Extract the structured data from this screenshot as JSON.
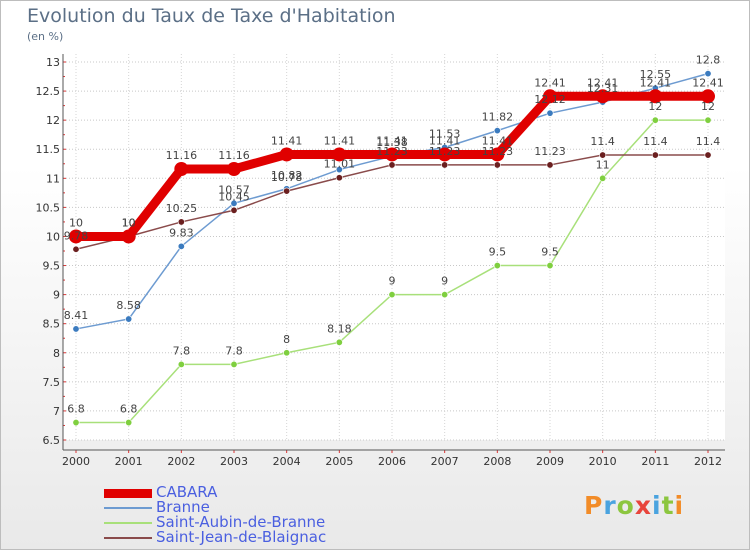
{
  "title": "Evolution du Taux de Taxe d'Habitation",
  "subtitle": "(en %)",
  "logo": {
    "text": "Proxiti",
    "letter_colors": [
      "#f28c28",
      "#4aa3df",
      "#8cc63f",
      "#e8453c",
      "#4aa3df",
      "#8cc63f",
      "#f28c28"
    ]
  },
  "chart_data": {
    "type": "line",
    "title": "Evolution du Taux de Taxe d'Habitation",
    "ylabel": "(en %)",
    "xlabel": "",
    "x": [
      "2000",
      "2001",
      "2002",
      "2003",
      "2004",
      "2005",
      "2006",
      "2007",
      "2008",
      "2009",
      "2010",
      "2011",
      "2012"
    ],
    "ylim": [
      6.5,
      13
    ],
    "yticks": [
      "6.5",
      "7",
      "7.5",
      "8",
      "8.5",
      "9",
      "9.5",
      "10",
      "10.5",
      "11",
      "11.5",
      "12",
      "12.5",
      "13"
    ],
    "grid": true,
    "legend_position": "bottom-left",
    "series": [
      {
        "name": "CABARA",
        "color": "#e00000",
        "emphasis": true,
        "values": [
          10,
          10,
          11.16,
          11.16,
          11.41,
          11.41,
          11.41,
          11.41,
          11.41,
          12.41,
          12.41,
          12.41,
          12.41
        ],
        "labels": [
          "10",
          "10",
          "11.16",
          "11.16",
          "11.41",
          "11.41",
          "11.41",
          "11.41",
          "11.41",
          "12.41",
          "12.41",
          "12.41",
          "12.41"
        ]
      },
      {
        "name": "Branne",
        "color": "#6d9bd1",
        "marker": "#3b7bbf",
        "values": [
          8.41,
          8.58,
          9.83,
          10.57,
          10.82,
          11.15,
          11.38,
          11.53,
          11.82,
          12.12,
          12.31,
          12.55,
          12.8
        ],
        "labels": [
          "8.41",
          "8.58",
          "9.83",
          "10.57",
          "10.82",
          "",
          "11.38",
          "11.53",
          "11.82",
          "12.12",
          "12.31",
          "12.55",
          "12.8"
        ]
      },
      {
        "name": "Saint-Aubin-de-Branne",
        "color": "#a8e07a",
        "marker": "#7fcf3f",
        "values": [
          6.8,
          6.8,
          7.8,
          7.8,
          8,
          8.18,
          9,
          9,
          9.5,
          9.5,
          11,
          12,
          12
        ],
        "labels": [
          "6.8",
          "6.8",
          "7.8",
          "7.8",
          "8",
          "8.18",
          "9",
          "9",
          "9.5",
          "9.5",
          "11",
          "12",
          "12"
        ]
      },
      {
        "name": "Saint-Jean-de-Blaignac",
        "color": "#8a4b4b",
        "marker": "#6b1f1f",
        "values": [
          9.78,
          10,
          10.25,
          10.45,
          10.78,
          11.01,
          11.23,
          11.23,
          11.23,
          11.23,
          11.4,
          11.4,
          11.4
        ],
        "labels": [
          "9.78",
          "10",
          "10.25",
          "10.45",
          "10.78",
          "11.01",
          "11.23",
          "11.23",
          "11.23",
          "11.23",
          "11.4",
          "11.4",
          "11.4"
        ]
      }
    ]
  }
}
